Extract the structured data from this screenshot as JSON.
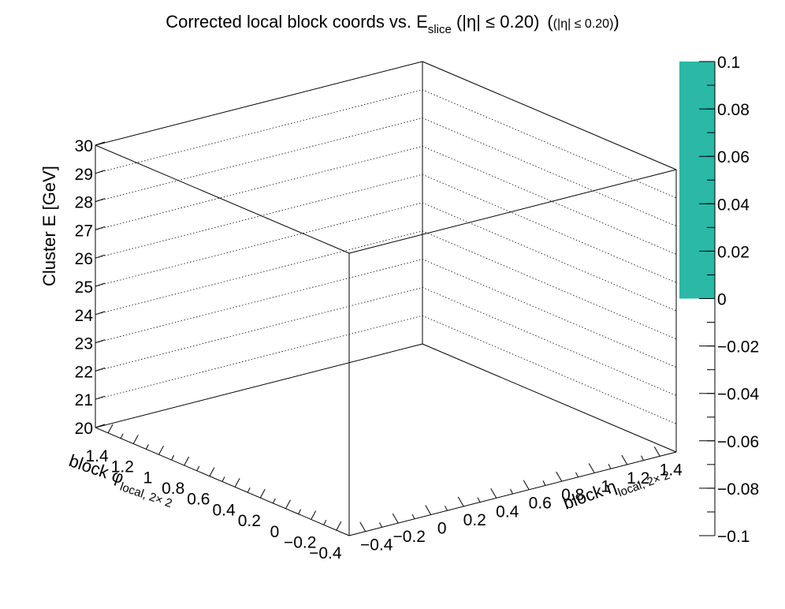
{
  "chart_data": {
    "type": "heatmap",
    "title": {
      "main": "Corrected local block coords vs. E",
      "main_sub": "slice",
      "cut": " (|η| ≤ 0.20)",
      "tag": "(|η| ≤ 0.20)"
    },
    "xlabel": {
      "text": "block η",
      "sub": "local, 2× 2"
    },
    "ylabel": {
      "text": "block φ",
      "sub": "local, 2× 2"
    },
    "zlabel": "Cluster E  [GeV]",
    "xrange": [
      -0.5,
      1.5
    ],
    "yrange": [
      -0.5,
      1.5
    ],
    "zrange": [
      20,
      30
    ],
    "x_ticks": [
      "−0.4",
      "−0.2",
      "0",
      "0.2",
      "0.4",
      "0.6",
      "0.8",
      "1",
      "1.2",
      "1.4"
    ],
    "x_tick_values": [
      -0.4,
      -0.2,
      0,
      0.2,
      0.4,
      0.6,
      0.8,
      1.0,
      1.2,
      1.4
    ],
    "y_ticks": [
      "−0.4",
      "−0.2",
      "0",
      "0.2",
      "0.4",
      "0.6",
      "0.8",
      "1",
      "1.2",
      "1.4"
    ],
    "y_tick_values": [
      -0.4,
      -0.2,
      0,
      0.2,
      0.4,
      0.6,
      0.8,
      1.0,
      1.2,
      1.4
    ],
    "z_ticks": [
      "20",
      "21",
      "22",
      "23",
      "24",
      "25",
      "26",
      "27",
      "28",
      "29",
      "30"
    ],
    "z_tick_values": [
      20,
      21,
      22,
      23,
      24,
      25,
      26,
      27,
      28,
      29,
      30
    ],
    "palette_range": [
      -0.1,
      0.1
    ],
    "palette_ticks": [
      "0.1",
      "0.08",
      "0.06",
      "0.04",
      "0.02",
      "0",
      "−0.02",
      "−0.04",
      "−0.06",
      "−0.08",
      "−0.1"
    ],
    "palette_tick_values": [
      0.1,
      0.08,
      0.06,
      0.04,
      0.02,
      0,
      -0.02,
      -0.04,
      -0.06,
      -0.08,
      -0.1
    ],
    "palette_fill": {
      "from": 0,
      "to": 0.1,
      "color": "#2bb8a6"
    },
    "entries": [],
    "grid": true
  }
}
